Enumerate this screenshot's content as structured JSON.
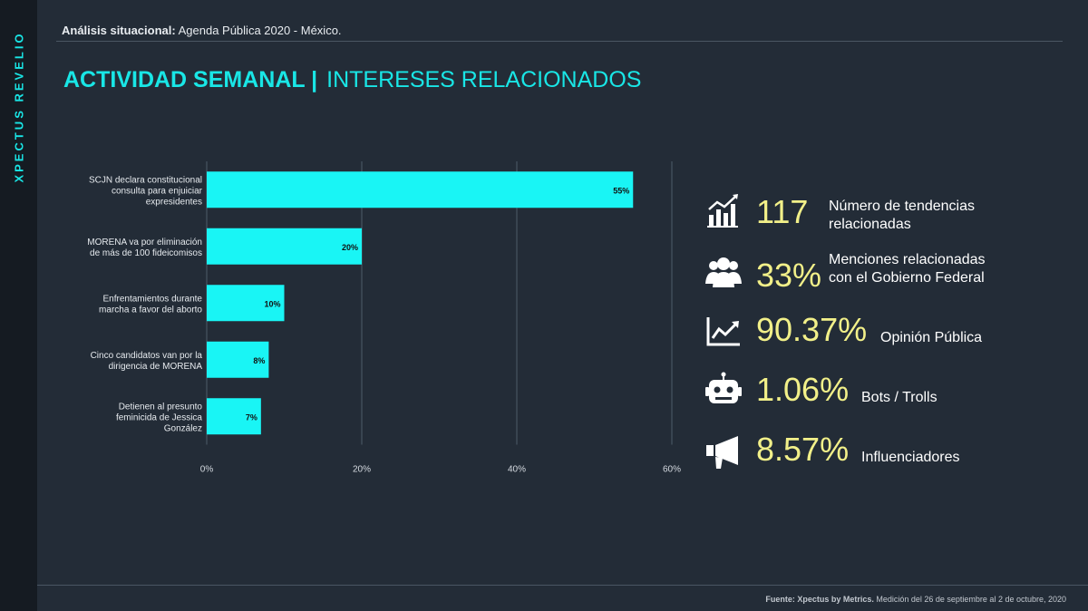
{
  "brand": "XPECTUS REVELIO",
  "header": {
    "bold": "Análisis situacional:",
    "text": " Agenda Pública 2020 - México."
  },
  "title": {
    "main": "ACTIVIDAD SEMANAL |",
    "sub": "INTERESES RELACIONADOS"
  },
  "chart_data": {
    "type": "bar",
    "orientation": "horizontal",
    "categories": [
      "SCJN declara constitucional\nconsulta para enjuiciar\nexpresidentes",
      "MORENA va por eliminación\nde más de 100 fideicomisos",
      "Enfrentamientos durante\nmarcha a favor del aborto",
      "Cinco candidatos van por la\ndirigencia de MORENA",
      "Detienen al presunto\nfeminicida de Jessica\nGonzález"
    ],
    "values": [
      55,
      20,
      10,
      8,
      7
    ],
    "value_labels": [
      "55%",
      "20%",
      "10%",
      "8%",
      "7%"
    ],
    "x_ticks": [
      "0%",
      "20%",
      "40%",
      "60%"
    ],
    "xlim": [
      0,
      60
    ],
    "grid": true,
    "bar_color": "#19f5f5"
  },
  "stats": [
    {
      "icon": "bar-chart-icon",
      "value": "117",
      "label": "Número de tendencias\nrelacionadas"
    },
    {
      "icon": "users-icon",
      "value": "33%",
      "label": "Menciones relacionadas\ncon el Gobierno Federal"
    },
    {
      "icon": "trend-chart-icon",
      "value": "90.37%",
      "label": "Opinión Pública"
    },
    {
      "icon": "robot-icon",
      "value": "1.06%",
      "label": "Bots / Trolls"
    },
    {
      "icon": "megaphone-icon",
      "value": "8.57%",
      "label": "Influenciadores"
    }
  ],
  "footer": {
    "bold": "Fuente: Xpectus by Metrics.",
    "text": " Medición del 26 de septiembre al 2 de octubre, 2020"
  },
  "colors": {
    "accent": "#19e6e6",
    "value": "#f2f089",
    "background": "#232c37"
  }
}
